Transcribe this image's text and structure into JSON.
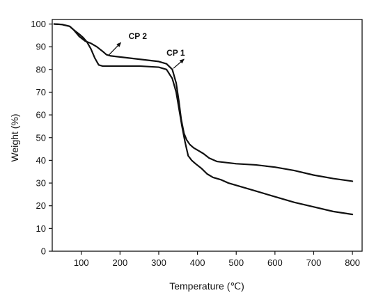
{
  "chart_data": {
    "type": "line",
    "title": "",
    "xlabel": "Temperature (℃)",
    "ylabel": "Weight (%)",
    "xlim": [
      25,
      825
    ],
    "ylim": [
      0,
      102
    ],
    "xticks": [
      100,
      200,
      300,
      400,
      500,
      600,
      700,
      800
    ],
    "yticks": [
      0,
      10,
      20,
      30,
      40,
      50,
      60,
      70,
      80,
      90,
      100
    ],
    "grid": false,
    "legend": "none",
    "line_color": "#111111",
    "series": [
      {
        "name": "CP 1",
        "x": [
          30,
          50,
          70,
          80,
          95,
          105,
          115,
          125,
          135,
          145,
          155,
          170,
          200,
          250,
          300,
          320,
          335,
          345,
          352,
          360,
          368,
          376,
          385,
          395,
          410,
          425,
          440,
          460,
          480,
          500,
          550,
          600,
          650,
          700,
          750,
          800
        ],
        "y": [
          100,
          99.8,
          99,
          97.5,
          95.5,
          94,
          92,
          89,
          85,
          82,
          81.5,
          81.5,
          81.5,
          81.5,
          81,
          80,
          76,
          70,
          63,
          55,
          48,
          42,
          40,
          38.5,
          36.5,
          34,
          32.5,
          31.5,
          30,
          29,
          26.5,
          24,
          21.5,
          19.5,
          17.5,
          16.2
        ]
      },
      {
        "name": "CP 2",
        "x": [
          30,
          50,
          70,
          80,
          95,
          110,
          125,
          140,
          155,
          165,
          175,
          200,
          250,
          300,
          320,
          335,
          345,
          352,
          358,
          365,
          372,
          380,
          390,
          400,
          415,
          430,
          450,
          500,
          550,
          600,
          650,
          700,
          750,
          800
        ],
        "y": [
          100,
          99.8,
          99,
          97.5,
          94.5,
          92.5,
          91.5,
          90,
          88,
          86.5,
          86,
          85.5,
          84.5,
          83.5,
          82.5,
          80,
          74,
          66,
          58,
          52,
          49,
          47,
          45.5,
          44.5,
          43,
          41,
          39.5,
          38.5,
          38,
          37,
          35.5,
          33.5,
          32,
          30.8
        ]
      }
    ],
    "annotations": [
      {
        "text": "CP 2",
        "x": 222,
        "y": 93.5,
        "arrow_from": [
          172,
          86.5
        ],
        "arrow_to": [
          202,
          91.8
        ]
      },
      {
        "text": "CP 1",
        "x": 320,
        "y": 86,
        "arrow_from": [
          338,
          80.5
        ],
        "arrow_to": [
          365,
          84.5
        ]
      }
    ]
  }
}
